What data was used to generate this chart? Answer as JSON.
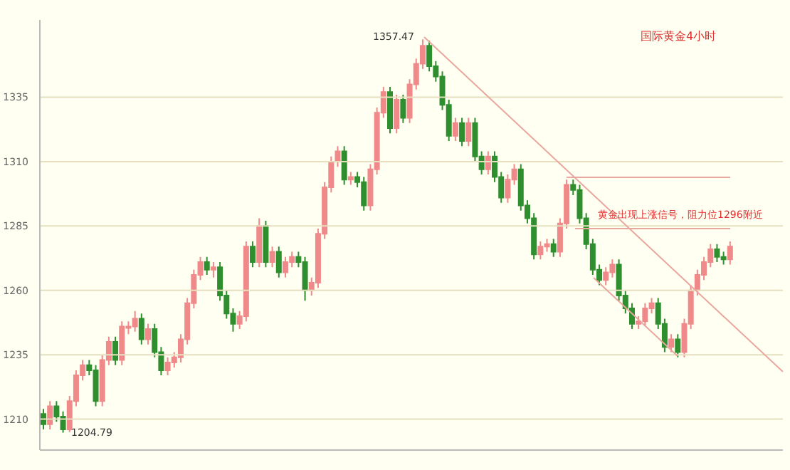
{
  "chart_data": {
    "type": "candlestick",
    "title": "国际黄金4小时",
    "annotations": [
      "1357.47",
      "1204.79",
      "黄金出现上涨信号，阻力位1296附近"
    ],
    "categories": [
      null,
      null,
      null,
      null,
      null,
      null,
      null,
      null,
      null,
      null,
      null,
      null,
      null,
      null,
      null,
      null,
      null,
      null,
      null,
      null,
      null,
      null,
      null,
      null,
      null,
      null,
      null,
      null,
      null,
      null,
      null,
      null,
      null,
      null,
      null,
      null,
      null,
      null,
      null,
      null,
      null,
      null,
      null,
      null,
      null,
      null,
      null,
      null,
      null,
      null,
      null,
      null,
      null,
      null,
      null,
      null,
      null,
      null,
      null,
      null,
      null,
      null,
      null,
      null,
      null,
      null,
      null,
      null,
      null,
      null,
      null,
      null,
      null,
      null,
      null,
      null,
      null,
      null,
      null,
      null,
      null,
      null,
      null,
      null,
      null,
      null,
      null,
      null,
      null,
      null,
      null,
      null,
      null,
      null,
      null,
      null,
      null,
      null,
      null,
      null,
      null,
      null,
      null,
      null,
      null,
      null
    ],
    "ohlc": [
      [
        1212,
        1214,
        1206,
        1208
      ],
      [
        1208,
        1217,
        1206,
        1215
      ],
      [
        1215,
        1217,
        1209,
        1211
      ],
      [
        1211,
        1213,
        1204.79,
        1206
      ],
      [
        1206,
        1219,
        1205,
        1217
      ],
      [
        1217,
        1229,
        1215,
        1227
      ],
      [
        1227,
        1233,
        1225,
        1231
      ],
      [
        1231,
        1233,
        1227,
        1229
      ],
      [
        1229,
        1231,
        1215,
        1217
      ],
      [
        1217,
        1235,
        1215,
        1233
      ],
      [
        1233,
        1242,
        1231,
        1240
      ],
      [
        1240,
        1242,
        1231,
        1233
      ],
      [
        1233,
        1248,
        1231,
        1246
      ],
      [
        1246,
        1248,
        1243,
        1246
      ],
      [
        1246,
        1252,
        1244,
        1249
      ],
      [
        1249,
        1251,
        1239,
        1241
      ],
      [
        1241,
        1247,
        1239,
        1245
      ],
      [
        1245,
        1247,
        1234,
        1236
      ],
      [
        1236,
        1238,
        1227,
        1229
      ],
      [
        1229,
        1234,
        1227,
        1232
      ],
      [
        1232,
        1236,
        1230,
        1234
      ],
      [
        1234,
        1243,
        1232,
        1241
      ],
      [
        1241,
        1257,
        1239,
        1255
      ],
      [
        1255,
        1268,
        1253,
        1266
      ],
      [
        1266,
        1273,
        1264,
        1271
      ],
      [
        1271,
        1273,
        1266,
        1268
      ],
      [
        1268,
        1271,
        1265,
        1269
      ],
      [
        1269,
        1271,
        1256,
        1258
      ],
      [
        1258,
        1260,
        1249,
        1251
      ],
      [
        1251,
        1253,
        1244,
        1247
      ],
      [
        1247,
        1252,
        1245,
        1250
      ],
      [
        1250,
        1279,
        1248,
        1277
      ],
      [
        1277,
        1279,
        1269,
        1271
      ],
      [
        1271,
        1288,
        1269,
        1285
      ],
      [
        1285,
        1287,
        1269,
        1271
      ],
      [
        1271,
        1277,
        1269,
        1275
      ],
      [
        1275,
        1277,
        1265,
        1267
      ],
      [
        1267,
        1273,
        1265,
        1271
      ],
      [
        1271,
        1275,
        1269,
        1273
      ],
      [
        1273,
        1275,
        1269,
        1271
      ],
      [
        1271,
        1273,
        1256,
        1260
      ],
      [
        1260,
        1265,
        1258,
        1263
      ],
      [
        1263,
        1284,
        1261,
        1282
      ],
      [
        1282,
        1302,
        1280,
        1300
      ],
      [
        1300,
        1312,
        1298,
        1310
      ],
      [
        1310,
        1316,
        1308,
        1314
      ],
      [
        1314,
        1316,
        1301,
        1303
      ],
      [
        1303,
        1306,
        1301,
        1304
      ],
      [
        1304,
        1306,
        1300,
        1302
      ],
      [
        1302,
        1304,
        1291,
        1293
      ],
      [
        1293,
        1309,
        1291,
        1307
      ],
      [
        1307,
        1331,
        1305,
        1329
      ],
      [
        1329,
        1339,
        1327,
        1337
      ],
      [
        1337,
        1339,
        1321,
        1323
      ],
      [
        1323,
        1336,
        1321,
        1334
      ],
      [
        1334,
        1336,
        1325,
        1327
      ],
      [
        1327,
        1342,
        1325,
        1340
      ],
      [
        1340,
        1350,
        1338,
        1348
      ],
      [
        1348,
        1357.47,
        1346,
        1355
      ],
      [
        1355,
        1357,
        1345,
        1347
      ],
      [
        1347,
        1349,
        1341,
        1343
      ],
      [
        1343,
        1345,
        1330,
        1332
      ],
      [
        1332,
        1334,
        1318,
        1320
      ],
      [
        1320,
        1327,
        1318,
        1325
      ],
      [
        1325,
        1327,
        1316,
        1318
      ],
      [
        1318,
        1327,
        1316,
        1325
      ],
      [
        1325,
        1327,
        1310,
        1312
      ],
      [
        1312,
        1314,
        1305,
        1307
      ],
      [
        1307,
        1314,
        1305,
        1312
      ],
      [
        1312,
        1314,
        1302,
        1304
      ],
      [
        1304,
        1306,
        1294,
        1296
      ],
      [
        1296,
        1305,
        1294,
        1303
      ],
      [
        1303,
        1309,
        1301,
        1307
      ],
      [
        1307,
        1309,
        1291,
        1293
      ],
      [
        1293,
        1295,
        1286,
        1288
      ],
      [
        1288,
        1290,
        1272,
        1274
      ],
      [
        1274,
        1279,
        1272,
        1277
      ],
      [
        1277,
        1280,
        1275,
        1278
      ],
      [
        1278,
        1280,
        1273,
        1275
      ],
      [
        1275,
        1288,
        1273,
        1286
      ],
      [
        1286,
        1303,
        1284,
        1301
      ],
      [
        1301,
        1303,
        1297,
        1299
      ],
      [
        1299,
        1301,
        1286,
        1288
      ],
      [
        1288,
        1290,
        1276,
        1278
      ],
      [
        1278,
        1280,
        1266,
        1268
      ],
      [
        1268,
        1270,
        1262,
        1264
      ],
      [
        1264,
        1269,
        1262,
        1267
      ],
      [
        1267,
        1272,
        1265,
        1270
      ],
      [
        1270,
        1272,
        1256,
        1258
      ],
      [
        1258,
        1260,
        1251,
        1253
      ],
      [
        1253,
        1255,
        1245,
        1247
      ],
      [
        1247,
        1250,
        1245,
        1248
      ],
      [
        1248,
        1255,
        1246,
        1253
      ],
      [
        1253,
        1257,
        1251,
        1255
      ],
      [
        1255,
        1257,
        1245,
        1247
      ],
      [
        1247,
        1249,
        1236,
        1238
      ],
      [
        1238,
        1243,
        1236,
        1241
      ],
      [
        1241,
        1243,
        1234,
        1236
      ],
      [
        1236,
        1249,
        1234,
        1247
      ],
      [
        1247,
        1262,
        1245,
        1260
      ],
      [
        1260,
        1268,
        1258,
        1266
      ],
      [
        1266,
        1273,
        1264,
        1271
      ],
      [
        1271,
        1278,
        1269,
        1276
      ],
      [
        1276,
        1278,
        1271,
        1273
      ],
      [
        1273,
        1275,
        1270,
        1272
      ],
      [
        1272,
        1279,
        1270,
        1277
      ]
    ],
    "colors": [
      "#2f8f2f",
      "#f08a8a",
      "#2f8f2f",
      "#2f8f2f",
      "#f08a8a",
      "#f08a8a",
      "#f08a8a",
      "#2f8f2f",
      "#2f8f2f",
      "#f08a8a",
      "#f08a8a",
      "#2f8f2f",
      "#f08a8a",
      "#f08a8a",
      "#f08a8a",
      "#2f8f2f",
      "#f08a8a",
      "#2f8f2f",
      "#2f8f2f",
      "#f08a8a",
      "#f08a8a",
      "#f08a8a",
      "#f08a8a",
      "#f08a8a",
      "#f08a8a",
      "#2f8f2f",
      "#f08a8a",
      "#2f8f2f",
      "#2f8f2f",
      "#2f8f2f",
      "#f08a8a",
      "#f08a8a",
      "#2f8f2f",
      "#f08a8a",
      "#2f8f2f",
      "#f08a8a",
      "#2f8f2f",
      "#f08a8a",
      "#f08a8a",
      "#2f8f2f",
      "#2f8f2f",
      "#f08a8a",
      "#f08a8a",
      "#f08a8a",
      "#f08a8a",
      "#f08a8a",
      "#2f8f2f",
      "#f08a8a",
      "#2f8f2f",
      "#2f8f2f",
      "#f08a8a",
      "#f08a8a",
      "#f08a8a",
      "#2f8f2f",
      "#f08a8a",
      "#2f8f2f",
      "#f08a8a",
      "#f08a8a",
      "#f08a8a",
      "#2f8f2f",
      "#2f8f2f",
      "#2f8f2f",
      "#2f8f2f",
      "#f08a8a",
      "#2f8f2f",
      "#f08a8a",
      "#2f8f2f",
      "#2f8f2f",
      "#f08a8a",
      "#2f8f2f",
      "#2f8f2f",
      "#f08a8a",
      "#f08a8a",
      "#2f8f2f",
      "#2f8f2f",
      "#2f8f2f",
      "#f08a8a",
      "#f08a8a",
      "#2f8f2f",
      "#f08a8a",
      "#f08a8a",
      "#2f8f2f",
      "#2f8f2f",
      "#2f8f2f",
      "#2f8f2f",
      "#2f8f2f",
      "#f08a8a",
      "#f08a8a",
      "#2f8f2f",
      "#2f8f2f",
      "#2f8f2f",
      "#f08a8a",
      "#f08a8a",
      "#f08a8a",
      "#2f8f2f",
      "#2f8f2f",
      "#f08a8a",
      "#2f8f2f",
      "#f08a8a",
      "#f08a8a",
      "#f08a8a",
      "#f08a8a",
      "#f08a8a",
      "#2f8f2f",
      "#2f8f2f",
      "#f08a8a"
    ],
    "ylim": [
      1198,
      1365
    ],
    "yticks": [
      1210,
      1235,
      1260,
      1285,
      1310,
      1335
    ],
    "grid": "y",
    "tick_labels": "y"
  }
}
